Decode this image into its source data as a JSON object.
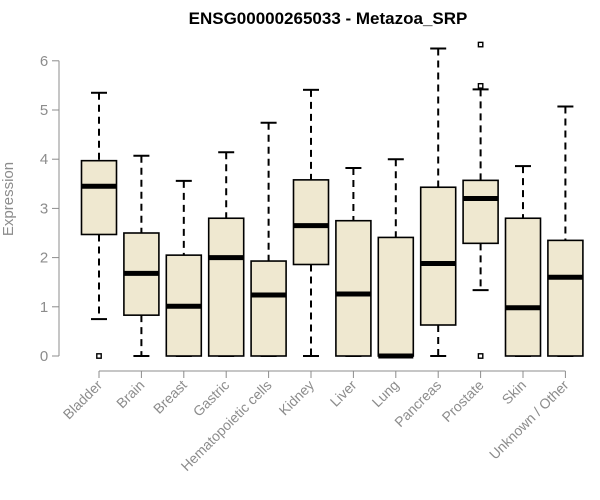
{
  "chart_data": {
    "type": "boxplot",
    "title": "ENSG00000265033 - Metazoa_SRP",
    "xlabel": "",
    "ylabel": "Expression",
    "ylim": [
      0,
      6.3
    ],
    "yticks": [
      0,
      1,
      2,
      3,
      4,
      5,
      6
    ],
    "grid": false,
    "box_fill": "#efe8d0",
    "box_stroke": "#000000",
    "axis_color": "#8c8c8c",
    "categories": [
      "Bladder",
      "Brain",
      "Breast",
      "Gastric",
      "Hematopoietic cells",
      "Kidney",
      "Liver",
      "Lung",
      "Pancreas",
      "Prostate",
      "Skin",
      "Unknown / Other"
    ],
    "boxes": [
      {
        "min": 0.75,
        "q1": 2.47,
        "median": 3.45,
        "q3": 3.97,
        "max": 5.35,
        "outliers": [
          0.0
        ]
      },
      {
        "min": 0.0,
        "q1": 0.83,
        "median": 1.68,
        "q3": 2.5,
        "max": 4.07,
        "outliers": []
      },
      {
        "min": 0.0,
        "q1": 0.0,
        "median": 1.01,
        "q3": 2.05,
        "max": 3.56,
        "outliers": []
      },
      {
        "min": 0.0,
        "q1": 0.0,
        "median": 2.0,
        "q3": 2.8,
        "max": 4.14,
        "outliers": []
      },
      {
        "min": 0.0,
        "q1": 0.0,
        "median": 1.24,
        "q3": 1.93,
        "max": 4.74,
        "outliers": []
      },
      {
        "min": 0.0,
        "q1": 1.86,
        "median": 2.65,
        "q3": 3.58,
        "max": 5.41,
        "outliers": []
      },
      {
        "min": 0.0,
        "q1": 0.0,
        "median": 1.26,
        "q3": 2.75,
        "max": 3.82,
        "outliers": []
      },
      {
        "min": 0.0,
        "q1": 0.0,
        "median": 0.0,
        "q3": 2.41,
        "max": 4.0,
        "outliers": []
      },
      {
        "min": 0.0,
        "q1": 0.63,
        "median": 1.88,
        "q3": 3.43,
        "max": 6.25,
        "outliers": []
      },
      {
        "min": 1.34,
        "q1": 2.29,
        "median": 3.2,
        "q3": 3.57,
        "max": 5.42,
        "outliers": [
          0.0,
          5.49,
          6.33
        ]
      },
      {
        "min": 0.0,
        "q1": 0.0,
        "median": 0.98,
        "q3": 2.8,
        "max": 3.86,
        "outliers": []
      },
      {
        "min": 0.0,
        "q1": 0.0,
        "median": 1.6,
        "q3": 2.35,
        "max": 5.07,
        "outliers": []
      }
    ]
  }
}
